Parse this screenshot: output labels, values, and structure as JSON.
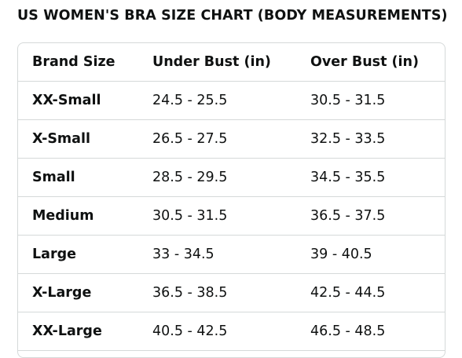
{
  "title": "US WOMEN'S BRA SIZE CHART (BODY MEASUREMENTS)",
  "table": {
    "headers": [
      "Brand Size",
      "Under Bust (in)",
      "Over Bust (in)"
    ],
    "rows": [
      [
        "XX-Small",
        "24.5 - 25.5",
        "30.5 - 31.5"
      ],
      [
        "X-Small",
        "26.5 - 27.5",
        "32.5 - 33.5"
      ],
      [
        "Small",
        "28.5 - 29.5",
        "34.5 - 35.5"
      ],
      [
        "Medium",
        "30.5 - 31.5",
        "36.5 - 37.5"
      ],
      [
        "Large",
        "33 - 34.5",
        "39 - 40.5"
      ],
      [
        "X-Large",
        "36.5 - 38.5",
        "42.5 - 44.5"
      ],
      [
        "XX-Large",
        "40.5 - 42.5",
        "46.5 - 48.5"
      ]
    ]
  }
}
